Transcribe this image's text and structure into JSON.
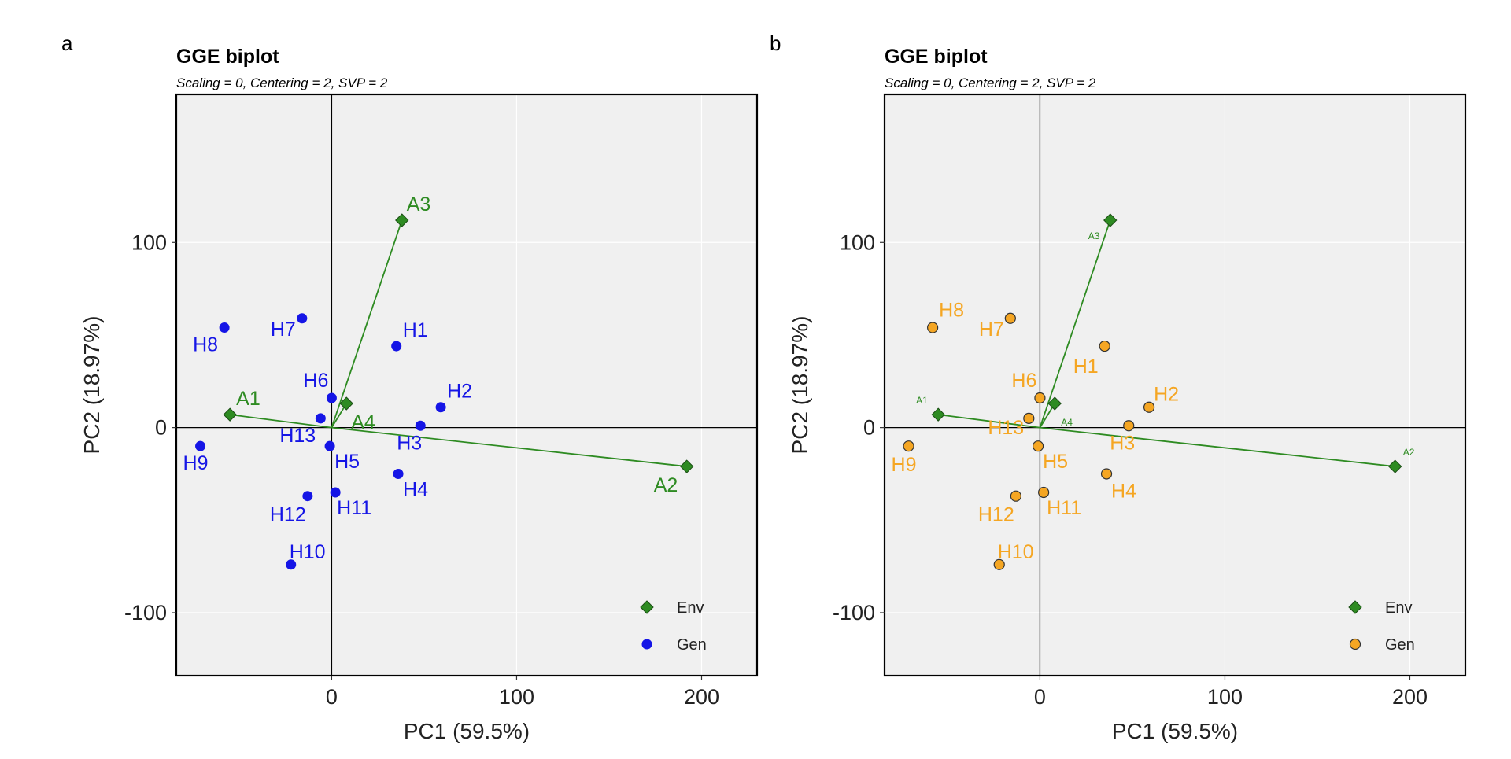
{
  "chart_data": [
    {
      "type": "scatter",
      "panel_tag": "a",
      "title": "GGE biplot",
      "subtitle": "Scaling = 0, Centering = 2, SVP = 2",
      "xlabel": "PC1 (59.5%)",
      "ylabel": "PC2 (18.97%)",
      "xlim": [
        -84,
        230
      ],
      "ylim": [
        -134,
        180
      ],
      "xticks": [
        0,
        100,
        200
      ],
      "yticks": [
        -100,
        0,
        100
      ],
      "grid": true,
      "legend_position": "bottom-right",
      "environment_label_size": "large",
      "series": [
        {
          "name": "Env",
          "color": "#2e8b22",
          "marker": "diamond",
          "points": [
            {
              "label": "A1",
              "x": -55,
              "y": 7
            },
            {
              "label": "A2",
              "x": 192,
              "y": -21
            },
            {
              "label": "A3",
              "x": 38,
              "y": 112
            },
            {
              "label": "A4",
              "x": 8,
              "y": 13
            }
          ]
        },
        {
          "name": "Gen",
          "color": "#1515e6",
          "marker": "circle",
          "points": [
            {
              "label": "H1",
              "x": 35,
              "y": 44
            },
            {
              "label": "H2",
              "x": 59,
              "y": 11
            },
            {
              "label": "H3",
              "x": 48,
              "y": 1
            },
            {
              "label": "H4",
              "x": 36,
              "y": -25
            },
            {
              "label": "H5",
              "x": -1,
              "y": -10
            },
            {
              "label": "H6",
              "x": 0,
              "y": 16
            },
            {
              "label": "H7",
              "x": -16,
              "y": 59
            },
            {
              "label": "H8",
              "x": -58,
              "y": 54
            },
            {
              "label": "H9",
              "x": -71,
              "y": -10
            },
            {
              "label": "H10",
              "x": -22,
              "y": -74
            },
            {
              "label": "H11",
              "x": 2,
              "y": -35
            },
            {
              "label": "H12",
              "x": -13,
              "y": -37
            },
            {
              "label": "H13",
              "x": -6,
              "y": 5
            }
          ]
        }
      ]
    },
    {
      "type": "scatter",
      "panel_tag": "b",
      "title": "GGE biplot",
      "subtitle": "Scaling = 0, Centering = 2, SVP = 2",
      "xlabel": "PC1 (59.5%)",
      "ylabel": "PC2 (18.97%)",
      "xlim": [
        -84,
        230
      ],
      "ylim": [
        -134,
        180
      ],
      "xticks": [
        0,
        100,
        200
      ],
      "yticks": [
        -100,
        0,
        100
      ],
      "grid": true,
      "legend_position": "bottom-right",
      "environment_label_size": "small",
      "series": [
        {
          "name": "Env",
          "color": "#2e8b22",
          "marker": "diamond",
          "points": [
            {
              "label": "A1",
              "x": -55,
              "y": 7
            },
            {
              "label": "A2",
              "x": 192,
              "y": -21
            },
            {
              "label": "A3",
              "x": 38,
              "y": 112
            },
            {
              "label": "A4",
              "x": 8,
              "y": 13
            }
          ]
        },
        {
          "name": "Gen",
          "color": "#f5a623",
          "marker": "circle-outlined",
          "points": [
            {
              "label": "H1",
              "x": 35,
              "y": 44
            },
            {
              "label": "H2",
              "x": 59,
              "y": 11
            },
            {
              "label": "H3",
              "x": 48,
              "y": 1
            },
            {
              "label": "H4",
              "x": 36,
              "y": -25
            },
            {
              "label": "H5",
              "x": -1,
              "y": -10
            },
            {
              "label": "H6",
              "x": 0,
              "y": 16
            },
            {
              "label": "H7",
              "x": -16,
              "y": 59
            },
            {
              "label": "H8",
              "x": -58,
              "y": 54
            },
            {
              "label": "H9",
              "x": -71,
              "y": -10
            },
            {
              "label": "H10",
              "x": -22,
              "y": -74
            },
            {
              "label": "H11",
              "x": 2,
              "y": -35
            },
            {
              "label": "H12",
              "x": -13,
              "y": -37
            },
            {
              "label": "H13",
              "x": -6,
              "y": 5
            }
          ]
        }
      ]
    }
  ]
}
